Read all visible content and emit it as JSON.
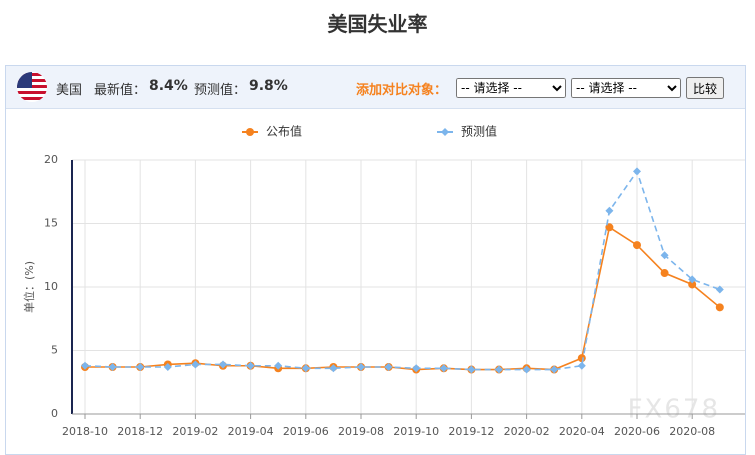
{
  "page_title": "美国失业率",
  "header": {
    "country": "美国",
    "latest_label": "最新值：",
    "latest_value": "8.4%",
    "forecast_label": "预测值：",
    "forecast_value": "9.8%",
    "compare_label": "添加对比对象：",
    "select_1": "-- 请选择 --",
    "select_2": "-- 请选择 --",
    "button": "比较"
  },
  "watermark": "FX678",
  "chart_data": {
    "type": "line",
    "y_label": "单位：(%)",
    "categories": [
      "2018-10",
      null,
      "2018-12",
      null,
      "2019-02",
      null,
      "2019-04",
      null,
      "2019-06",
      null,
      "2019-08",
      null,
      "2019-10",
      null,
      "2019-12",
      null,
      "2020-02",
      null,
      "2020-04",
      null,
      "2020-06",
      null,
      "2020-08",
      null
    ],
    "series": [
      {
        "name": "公布值",
        "color": "#f5821f",
        "dash": false,
        "values": [
          3.7,
          3.7,
          3.7,
          3.9,
          4.0,
          3.8,
          3.8,
          3.6,
          3.6,
          3.7,
          3.7,
          3.7,
          3.5,
          3.6,
          3.5,
          3.5,
          3.6,
          3.5,
          4.4,
          14.7,
          13.3,
          11.1,
          10.2,
          8.4
        ]
      },
      {
        "name": "预测值",
        "color": "#7cb5ec",
        "dash": true,
        "values": [
          3.8,
          3.7,
          3.7,
          3.7,
          3.9,
          3.9,
          3.8,
          3.8,
          3.6,
          3.6,
          3.7,
          3.7,
          3.6,
          3.6,
          3.5,
          3.5,
          3.5,
          3.5,
          3.8,
          16.0,
          19.1,
          12.5,
          10.6,
          9.8
        ]
      }
    ],
    "ylim": [
      0,
      20
    ],
    "yticks": [
      0,
      5,
      10,
      15,
      20
    ],
    "grid": true
  }
}
